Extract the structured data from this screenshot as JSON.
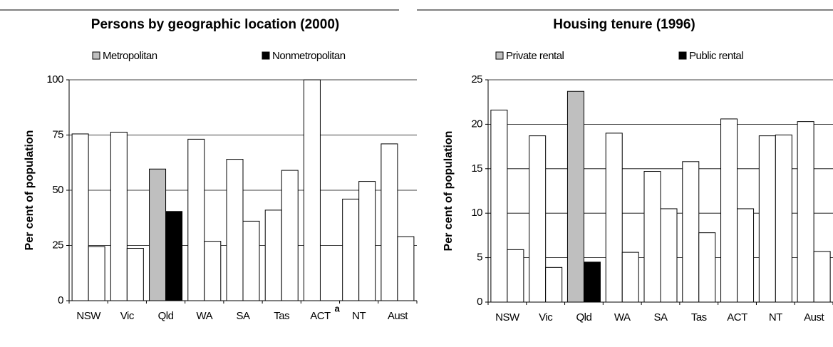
{
  "chart_data": [
    {
      "type": "bar",
      "title": "Persons by geographic location (2000)",
      "y_label": "Per cent of population",
      "categories": [
        "NSW",
        "Vic",
        "Qld",
        "WA",
        "SA",
        "Tas",
        "ACT",
        "NT",
        "Aust"
      ],
      "series": [
        {
          "name": "Metropolitan",
          "color": "#bfbfbf",
          "values": [
            75.5,
            76.3,
            59.6,
            73.1,
            64,
            41,
            100,
            46,
            71
          ]
        },
        {
          "name": "Nonmetropolitan",
          "color": "#000000",
          "values": [
            24.5,
            23.7,
            40.4,
            26.9,
            36,
            59,
            0,
            54,
            29
          ]
        }
      ],
      "highlight": "Qld",
      "other_color": "#ffffff",
      "annotation": {
        "text": "a",
        "category": "ACT"
      },
      "ylim": [
        0,
        100
      ],
      "yticks": [
        0,
        25,
        50,
        75,
        100
      ],
      "grid": true
    },
    {
      "type": "bar",
      "title": "Housing tenure (1996)",
      "y_label": "Per cent of population",
      "categories": [
        "NSW",
        "Vic",
        "Qld",
        "WA",
        "SA",
        "Tas",
        "ACT",
        "NT",
        "Aust"
      ],
      "series": [
        {
          "name": "Private rental",
          "color": "#bfbfbf",
          "values": [
            21.6,
            18.7,
            23.7,
            19.0,
            14.7,
            15.8,
            20.6,
            18.7,
            20.3
          ]
        },
        {
          "name": "Public rental",
          "color": "#000000",
          "values": [
            5.9,
            3.9,
            4.5,
            5.6,
            10.5,
            7.8,
            10.5,
            18.8,
            5.7
          ]
        }
      ],
      "highlight": "Qld",
      "other_color": "#ffffff",
      "ylim": [
        0,
        25
      ],
      "yticks": [
        0,
        5,
        10,
        15,
        20,
        25
      ],
      "grid": true
    }
  ]
}
